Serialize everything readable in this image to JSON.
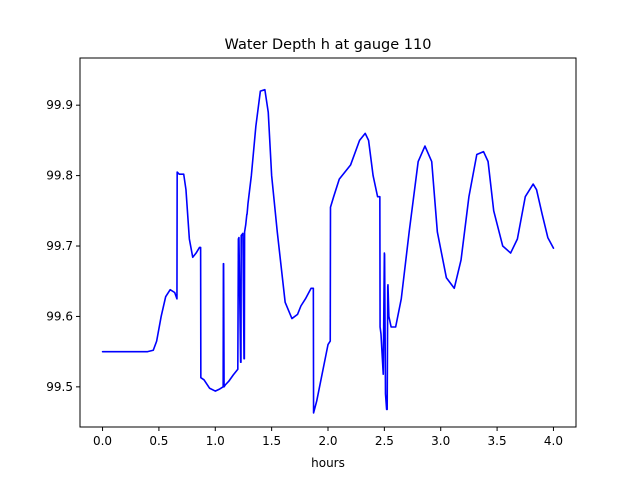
{
  "chart_data": {
    "type": "line",
    "title": "Water Depth h at gauge 110",
    "xlabel": "hours",
    "ylabel": "",
    "xlim": [
      -0.2,
      4.2
    ],
    "ylim": [
      99.443,
      99.967
    ],
    "grid": false,
    "x_ticks": [
      0.0,
      0.5,
      1.0,
      1.5,
      2.0,
      2.5,
      3.0,
      3.5,
      4.0
    ],
    "x_tick_labels": [
      "0.0",
      "0.5",
      "1.0",
      "1.5",
      "2.0",
      "2.5",
      "3.0",
      "3.5",
      "4.0"
    ],
    "y_ticks": [
      99.5,
      99.6,
      99.7,
      99.8,
      99.9
    ],
    "y_tick_labels": [
      "99.5",
      "99.6",
      "99.7",
      "99.8",
      "99.9"
    ],
    "series": [
      {
        "color": "#0000ff",
        "x": [
          0.0,
          0.15,
          0.3,
          0.4,
          0.45,
          0.48,
          0.52,
          0.56,
          0.6,
          0.64,
          0.66,
          0.662,
          0.68,
          0.72,
          0.74,
          0.77,
          0.8,
          0.83,
          0.86,
          0.87,
          0.872,
          0.9,
          0.95,
          1.0,
          1.04,
          1.07,
          1.072,
          1.074,
          1.078,
          1.09,
          1.12,
          1.16,
          1.2,
          1.2,
          1.205,
          1.21,
          1.225,
          1.228,
          1.23,
          1.245,
          1.255,
          1.258,
          1.26,
          1.27,
          1.28,
          1.282,
          1.29,
          1.32,
          1.36,
          1.4,
          1.44,
          1.47,
          1.5,
          1.55,
          1.62,
          1.68,
          1.73,
          1.76,
          1.8,
          1.85,
          1.87,
          1.872,
          1.9,
          2.0,
          2.02,
          2.022,
          2.05,
          2.1,
          2.2,
          2.28,
          2.33,
          2.36,
          2.4,
          2.44,
          2.46,
          2.462,
          2.47,
          2.49,
          2.5,
          2.502,
          2.51,
          2.52,
          2.525,
          2.53,
          2.532,
          2.54,
          2.56,
          2.6,
          2.65,
          2.72,
          2.8,
          2.86,
          2.92,
          2.97,
          3.05,
          3.12,
          3.18,
          3.25,
          3.32,
          3.38,
          3.42,
          3.47,
          3.55,
          3.62,
          3.68,
          3.75,
          3.82,
          3.85,
          3.9,
          3.95,
          4.0
        ],
        "values": [
          99.55,
          99.55,
          99.55,
          99.55,
          99.552,
          99.565,
          99.6,
          99.628,
          99.638,
          99.634,
          99.625,
          99.805,
          99.802,
          99.802,
          99.78,
          99.71,
          99.684,
          99.69,
          99.698,
          99.698,
          99.513,
          99.51,
          99.498,
          99.494,
          99.497,
          99.5,
          99.675,
          99.675,
          99.5,
          99.503,
          99.508,
          99.517,
          99.525,
          99.528,
          99.71,
          99.712,
          99.535,
          99.535,
          99.715,
          99.718,
          99.54,
          99.54,
          99.72,
          99.73,
          99.745,
          99.745,
          99.76,
          99.8,
          99.87,
          99.92,
          99.922,
          99.89,
          99.8,
          99.72,
          99.62,
          99.597,
          99.603,
          99.615,
          99.625,
          99.64,
          99.64,
          99.463,
          99.48,
          99.56,
          99.565,
          99.755,
          99.77,
          99.795,
          99.815,
          99.85,
          99.86,
          99.85,
          99.8,
          99.77,
          99.77,
          99.585,
          99.575,
          99.518,
          99.69,
          99.688,
          99.49,
          99.468,
          99.468,
          99.642,
          99.645,
          99.6,
          99.585,
          99.585,
          99.625,
          99.72,
          99.82,
          99.842,
          99.82,
          99.72,
          99.655,
          99.64,
          99.68,
          99.77,
          99.83,
          99.834,
          99.82,
          99.75,
          99.7,
          99.69,
          99.71,
          99.77,
          99.788,
          99.78,
          99.745,
          99.712,
          99.697
        ]
      }
    ]
  }
}
